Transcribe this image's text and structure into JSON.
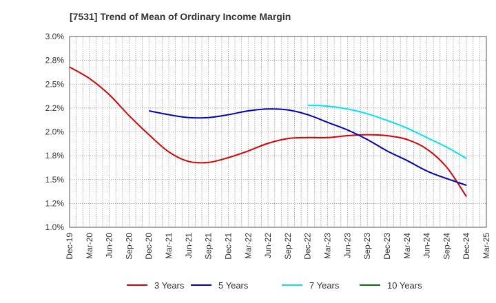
{
  "chart_data": {
    "type": "line",
    "title": "[7531]  Trend of Mean of Ordinary Income Margin",
    "x_ticks": [
      "Dec-19",
      "Mar-20",
      "Jun-20",
      "Sep-20",
      "Dec-20",
      "Mar-21",
      "Jun-21",
      "Sep-21",
      "Dec-21",
      "Mar-22",
      "Jun-22",
      "Sep-22",
      "Dec-22",
      "Mar-23",
      "Jun-23",
      "Sep-23",
      "Dec-23",
      "Mar-24",
      "Jun-24",
      "Sep-24",
      "Dec-24",
      "Mar-25"
    ],
    "y_ticks": [
      "1.0%",
      "1.2%",
      "1.5%",
      "1.8%",
      "2.0%",
      "2.2%",
      "2.5%",
      "2.8%",
      "3.0%"
    ],
    "ylim": [
      1.0,
      3.0
    ],
    "grid": true,
    "legend_position": "bottom",
    "series": [
      {
        "name": "3 Years",
        "color": "#dd0000",
        "x": [
          "Dec-19",
          "Mar-20",
          "Jun-20",
          "Sep-20",
          "Dec-20",
          "Mar-21",
          "Jun-21",
          "Sep-21",
          "Dec-21",
          "Mar-22",
          "Jun-22",
          "Sep-22",
          "Dec-22",
          "Mar-23",
          "Jun-23",
          "Sep-23",
          "Dec-23",
          "Mar-24",
          "Jun-24",
          "Sep-24",
          "Dec-24"
        ],
        "values": [
          2.68,
          2.56,
          2.39,
          2.17,
          1.97,
          1.79,
          1.69,
          1.68,
          1.73,
          1.8,
          1.88,
          1.93,
          1.94,
          1.94,
          1.96,
          1.97,
          1.96,
          1.92,
          1.82,
          1.63,
          1.32
        ]
      },
      {
        "name": "5 Years",
        "color": "#0000bb",
        "x": [
          "Dec-20",
          "Mar-21",
          "Jun-21",
          "Sep-21",
          "Dec-21",
          "Mar-22",
          "Jun-22",
          "Sep-22",
          "Dec-22",
          "Mar-23",
          "Jun-23",
          "Sep-23",
          "Dec-23",
          "Mar-24",
          "Jun-24",
          "Sep-24",
          "Dec-24"
        ],
        "values": [
          2.22,
          2.18,
          2.15,
          2.15,
          2.18,
          2.22,
          2.24,
          2.23,
          2.18,
          2.1,
          2.02,
          1.92,
          1.8,
          1.7,
          1.59,
          1.51,
          1.44
        ]
      },
      {
        "name": "7 Years",
        "color": "#00e5ee",
        "x": [
          "Dec-22",
          "Mar-23",
          "Jun-23",
          "Sep-23",
          "Dec-23",
          "Mar-24",
          "Jun-24",
          "Sep-24",
          "Dec-24"
        ],
        "values": [
          2.28,
          2.27,
          2.24,
          2.19,
          2.12,
          2.04,
          1.94,
          1.84,
          1.72
        ]
      },
      {
        "name": "10 Years",
        "color": "#007700",
        "x": [],
        "values": []
      }
    ]
  }
}
